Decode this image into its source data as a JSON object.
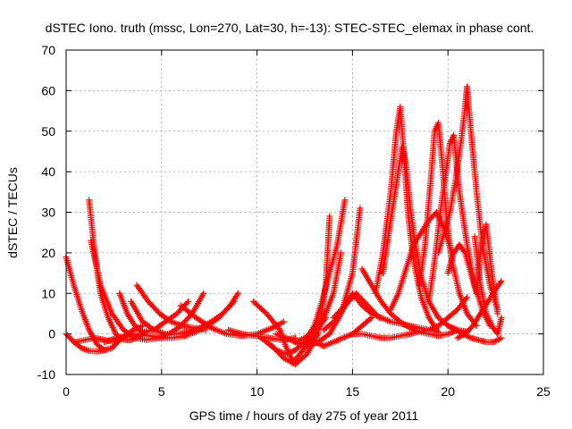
{
  "chart_data": {
    "type": "scatter",
    "title": "dSTEC Iono. truth (mssc, Lon=270, Lat=30, h=-13): STEC-STEC_elemax in phase cont.",
    "xlabel": "GPS time / hours of day 275 of year 2011",
    "ylabel": "dSTEC  / TECUs",
    "xlim": [
      0,
      25
    ],
    "ylim": [
      -10,
      70
    ],
    "xticks": [
      "0",
      "5",
      "10",
      "15",
      "20",
      "25"
    ],
    "yticks": [
      "-10",
      "0",
      "10",
      "20",
      "30",
      "40",
      "50",
      "60",
      "70"
    ],
    "grid": true,
    "marker": "+",
    "color": "#ff0000",
    "series": [
      {
        "x": [
          0.0,
          0.4,
          0.8,
          1.2,
          1.6,
          2.0,
          2.4,
          2.8,
          3.2
        ],
        "y": [
          19,
          12,
          6,
          1,
          -2.5,
          -4,
          -3.5,
          -1.5,
          0
        ]
      },
      {
        "x": [
          0.0,
          0.4,
          0.8,
          1.2,
          1.6,
          2.0
        ],
        "y": [
          0,
          -2,
          -3.5,
          -4.2,
          -4.3,
          -4
        ]
      },
      {
        "x": [
          1.2,
          1.5,
          1.8,
          2.2,
          2.6,
          3.0,
          3.4,
          3.8,
          4.2
        ],
        "y": [
          33,
          20,
          10,
          4,
          0,
          -1.5,
          -1.5,
          -0.5,
          0.5
        ]
      },
      {
        "x": [
          0.5,
          1.0,
          1.5,
          2.0,
          2.5,
          3.0,
          3.5,
          4.0
        ],
        "y": [
          -2,
          -1.5,
          -1,
          -1.5,
          -2,
          -1,
          1,
          2
        ]
      },
      {
        "x": [
          1.3,
          1.8,
          2.4,
          3.0,
          3.6,
          4.2,
          4.8,
          5.4,
          6.0,
          6.6,
          7.2
        ],
        "y": [
          23,
          12,
          5,
          1,
          -1,
          -1.5,
          -1,
          0,
          2,
          5,
          10
        ]
      },
      {
        "x": [
          2.0,
          2.6,
          3.2,
          3.8,
          4.4,
          5.0,
          5.6,
          6.2,
          6.8,
          7.4,
          8.0,
          8.6,
          9.0
        ],
        "y": [
          -2,
          -1,
          -0.5,
          0,
          -0.5,
          -1,
          -1,
          -0.5,
          0.5,
          2,
          4,
          7,
          10
        ]
      },
      {
        "x": [
          2.8,
          3.2,
          3.6,
          4.0,
          4.6,
          5.2,
          5.8,
          6.4
        ],
        "y": [
          10,
          5,
          2,
          0.5,
          1,
          3,
          5,
          8
        ]
      },
      {
        "x": [
          3.4,
          4.0,
          4.6,
          5.2,
          5.8,
          6.4,
          7.0,
          7.6,
          8.2,
          8.8
        ],
        "y": [
          8,
          3,
          1,
          0,
          0,
          0.5,
          1.5,
          3,
          5,
          8
        ]
      },
      {
        "x": [
          3.7,
          4.3,
          4.9,
          5.5,
          6.1,
          6.7,
          7.3
        ],
        "y": [
          12,
          8,
          5,
          3,
          2,
          1.5,
          1
        ]
      },
      {
        "x": [
          6.0,
          6.8,
          7.6,
          8.4,
          9.2,
          10.0,
          10.8,
          11.4
        ],
        "y": [
          7,
          4,
          1.5,
          0,
          -0.5,
          0,
          1.5,
          3
        ]
      },
      {
        "x": [
          8.5,
          9.2,
          9.9,
          10.6,
          11.3,
          12.0
        ],
        "y": [
          1,
          0,
          -0.5,
          -1,
          -1.5,
          -1
        ]
      },
      {
        "x": [
          9.8,
          10.5,
          11.2,
          11.5,
          11.9,
          12.4,
          13.0,
          13.6
        ],
        "y": [
          8,
          5,
          1,
          -3,
          -7,
          -4,
          0,
          4
        ]
      },
      {
        "x": [
          10.2,
          10.8,
          11.4,
          12.0,
          12.6,
          13.2,
          13.6,
          13.8
        ],
        "y": [
          -1,
          -3,
          -6,
          -7.5,
          -5,
          0,
          12,
          29
        ]
      },
      {
        "x": [
          10.5,
          11.0,
          11.5,
          12.0,
          12.5,
          13.0,
          13.4,
          13.8,
          14.2,
          14.6
        ],
        "y": [
          -2,
          -4,
          -5,
          -4,
          -2,
          2,
          8,
          15,
          22,
          33
        ]
      },
      {
        "x": [
          11.0,
          11.5,
          12.0,
          12.5,
          13.0,
          13.5,
          14.0,
          14.4
        ],
        "y": [
          0,
          -1,
          -2,
          -1,
          1,
          4,
          10,
          20
        ]
      },
      {
        "x": [
          12.0,
          12.6,
          13.2,
          13.8,
          14.4,
          15.0,
          15.4
        ],
        "y": [
          -2,
          -3,
          -2,
          0,
          5,
          15,
          31
        ]
      },
      {
        "x": [
          12.5,
          13.0,
          13.5,
          14.0,
          14.5,
          15.0,
          15.5,
          16.0
        ],
        "y": [
          -1,
          -2,
          -3,
          -2,
          -1,
          0,
          2,
          4
        ]
      },
      {
        "x": [
          13.5,
          14.0,
          14.5,
          15.0,
          15.5,
          16.0,
          16.5,
          17.0,
          17.5,
          18.0,
          18.5,
          19.0,
          19.5
        ],
        "y": [
          1,
          3,
          6,
          10,
          7,
          5,
          4,
          3,
          2.5,
          2,
          1.5,
          1,
          0.5
        ]
      },
      {
        "x": [
          14.0,
          14.4,
          14.8,
          15.2,
          15.6,
          16.0,
          16.4
        ],
        "y": [
          4,
          6,
          8,
          10,
          8,
          6,
          4
        ]
      },
      {
        "x": [
          15.5,
          16.0,
          16.5,
          17.0,
          17.5,
          18.0,
          18.5,
          19.0,
          19.5,
          20.0,
          20.5
        ],
        "y": [
          16,
          12,
          8,
          5,
          3,
          1.5,
          0.5,
          0,
          -0.5,
          0,
          1
        ]
      },
      {
        "x": [
          15.0,
          15.5,
          16.0,
          16.5,
          17.0,
          17.5,
          18.0,
          18.5,
          19.0,
          19.5,
          20.0,
          20.5,
          21.0
        ],
        "y": [
          0,
          0,
          -0.5,
          -1,
          -1,
          -0.5,
          0,
          0.5,
          1,
          2,
          4,
          6,
          9
        ]
      },
      {
        "x": [
          16.2,
          16.6,
          17.0,
          17.3,
          17.5,
          17.7,
          17.9,
          18.2,
          18.6,
          19.0,
          19.4
        ],
        "y": [
          10,
          20,
          35,
          50,
          56,
          44,
          30,
          18,
          9,
          4,
          1
        ]
      },
      {
        "x": [
          16.6,
          17.0,
          17.4,
          17.6,
          17.8,
          18.0,
          18.3,
          18.6,
          19.0,
          19.5,
          20.0,
          20.5,
          21.0
        ],
        "y": [
          15,
          28,
          40,
          46,
          42,
          32,
          22,
          14,
          8,
          4,
          2,
          1,
          0.5
        ]
      },
      {
        "x": [
          17.0,
          17.4,
          17.8,
          18.2,
          18.6,
          19.0,
          19.4,
          19.8,
          20.2
        ],
        "y": [
          6,
          10,
          16,
          22,
          25,
          28,
          30,
          26,
          20
        ]
      },
      {
        "x": [
          18.5,
          18.8,
          19.1,
          19.3,
          19.5,
          19.7,
          19.9,
          20.2,
          20.6,
          21.0,
          21.5
        ],
        "y": [
          12,
          22,
          38,
          50,
          52,
          42,
          30,
          18,
          10,
          5,
          2
        ]
      },
      {
        "x": [
          19.0,
          19.3,
          19.6,
          19.9,
          20.1,
          20.3,
          20.6,
          21.0,
          21.4,
          21.8,
          22.2
        ],
        "y": [
          8,
          18,
          30,
          40,
          47,
          49,
          35,
          22,
          12,
          6,
          2
        ]
      },
      {
        "x": [
          19.5,
          19.8,
          20.1,
          20.4,
          20.7,
          20.9,
          21.0,
          21.2,
          21.5,
          21.8,
          22.2,
          22.6
        ],
        "y": [
          20,
          25,
          30,
          38,
          48,
          56,
          61,
          50,
          35,
          22,
          12,
          6
        ]
      },
      {
        "x": [
          20.0,
          20.3,
          20.6,
          20.9,
          21.2,
          21.5,
          21.7,
          22.0,
          22.3,
          22.6
        ],
        "y": [
          15,
          20,
          22,
          20,
          15,
          10,
          20,
          27,
          15,
          5
        ]
      },
      {
        "x": [
          20.0,
          20.4,
          20.8,
          21.2,
          21.6,
          22.0,
          22.4,
          22.8
        ],
        "y": [
          2,
          1,
          0,
          -1,
          -1.5,
          -2,
          -2,
          -1
        ]
      },
      {
        "x": [
          20.5,
          20.9,
          21.3,
          21.7,
          22.1,
          22.5,
          22.8
        ],
        "y": [
          -1,
          0,
          2,
          5,
          8,
          11,
          13
        ]
      },
      {
        "x": [
          21.4,
          21.7,
          22.0,
          22.3,
          22.6,
          22.8
        ],
        "y": [
          24,
          12,
          5,
          2,
          0,
          4
        ]
      }
    ]
  }
}
